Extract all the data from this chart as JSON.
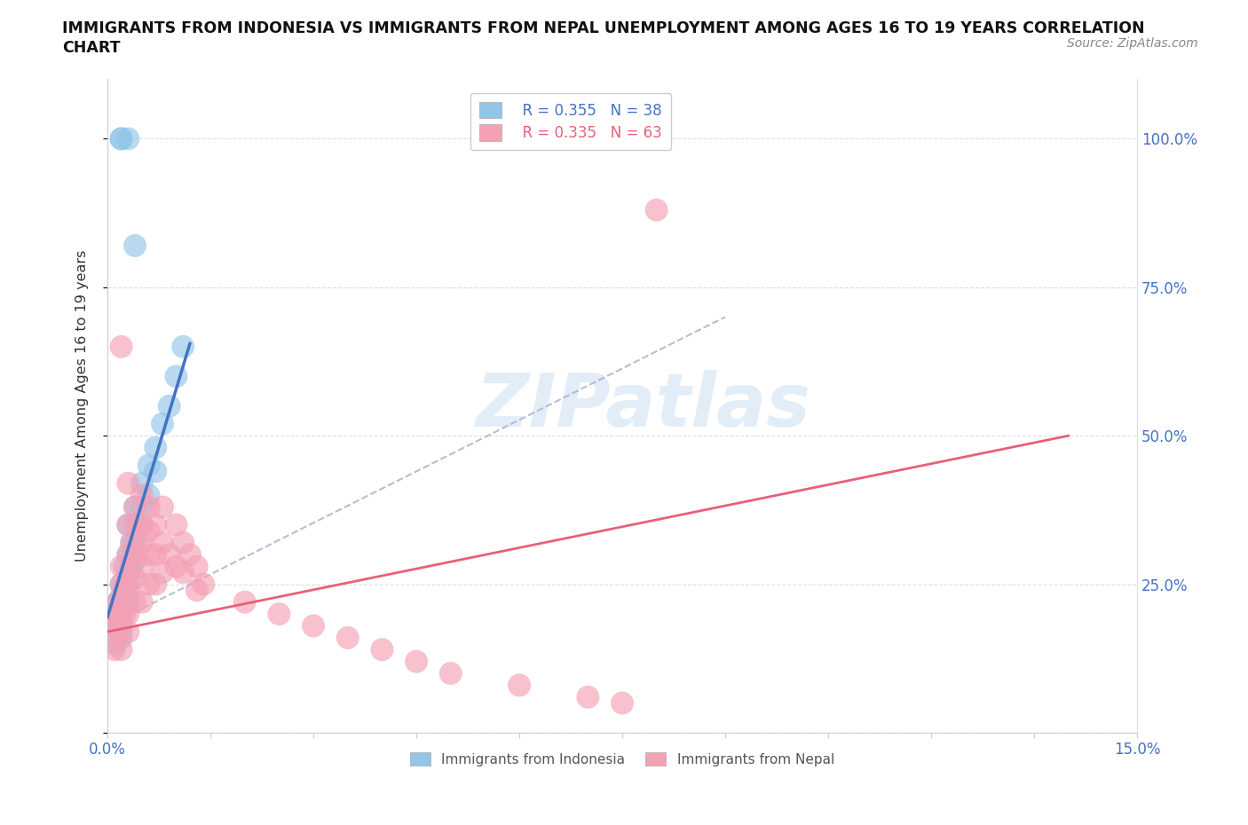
{
  "title_line1": "IMMIGRANTS FROM INDONESIA VS IMMIGRANTS FROM NEPAL UNEMPLOYMENT AMONG AGES 16 TO 19 YEARS CORRELATION",
  "title_line2": "CHART",
  "source": "Source: ZipAtlas.com",
  "ylabel": "Unemployment Among Ages 16 to 19 years",
  "xlim": [
    0.0,
    0.15
  ],
  "ylim": [
    0.0,
    1.1
  ],
  "legend_blue_R": "R = 0.355",
  "legend_blue_N": "N = 38",
  "legend_pink_R": "R = 0.335",
  "legend_pink_N": "N = 63",
  "blue_color": "#92C5E8",
  "pink_color": "#F4A0B5",
  "blue_line_color": "#4472C4",
  "pink_line_color": "#E8607A",
  "watermark": "ZIPatlas",
  "indonesia_x": [
    0.001,
    0.001,
    0.001,
    0.0015,
    0.0015,
    0.002,
    0.002,
    0.002,
    0.002,
    0.002,
    0.0025,
    0.0025,
    0.003,
    0.003,
    0.003,
    0.003,
    0.003,
    0.0035,
    0.0035,
    0.004,
    0.004,
    0.004,
    0.004,
    0.005,
    0.005,
    0.005,
    0.006,
    0.006,
    0.007,
    0.007,
    0.008,
    0.009,
    0.01,
    0.011,
    0.002,
    0.002,
    0.003,
    0.004
  ],
  "indonesia_y": [
    0.2,
    0.18,
    0.15,
    0.22,
    0.19,
    0.25,
    0.23,
    0.2,
    0.18,
    0.16,
    0.28,
    0.24,
    0.35,
    0.3,
    0.27,
    0.25,
    0.22,
    0.32,
    0.28,
    0.38,
    0.35,
    0.32,
    0.29,
    0.42,
    0.38,
    0.35,
    0.45,
    0.4,
    0.48,
    0.44,
    0.52,
    0.55,
    0.6,
    0.65,
    1.0,
    1.0,
    1.0,
    0.82
  ],
  "nepal_x": [
    0.001,
    0.001,
    0.001,
    0.001,
    0.0015,
    0.0015,
    0.002,
    0.002,
    0.002,
    0.002,
    0.002,
    0.002,
    0.0025,
    0.0025,
    0.003,
    0.003,
    0.003,
    0.003,
    0.003,
    0.003,
    0.0035,
    0.004,
    0.004,
    0.004,
    0.004,
    0.004,
    0.005,
    0.005,
    0.005,
    0.005,
    0.005,
    0.006,
    0.006,
    0.006,
    0.006,
    0.007,
    0.007,
    0.007,
    0.008,
    0.008,
    0.008,
    0.009,
    0.01,
    0.01,
    0.011,
    0.011,
    0.012,
    0.013,
    0.013,
    0.014,
    0.02,
    0.025,
    0.03,
    0.035,
    0.04,
    0.045,
    0.05,
    0.06,
    0.07,
    0.075,
    0.08,
    0.002,
    0.003
  ],
  "nepal_y": [
    0.2,
    0.18,
    0.16,
    0.14,
    0.22,
    0.18,
    0.28,
    0.25,
    0.22,
    0.2,
    0.17,
    0.14,
    0.25,
    0.2,
    0.35,
    0.3,
    0.27,
    0.24,
    0.2,
    0.17,
    0.32,
    0.38,
    0.35,
    0.3,
    0.26,
    0.22,
    0.4,
    0.35,
    0.32,
    0.28,
    0.22,
    0.38,
    0.34,
    0.3,
    0.25,
    0.35,
    0.3,
    0.25,
    0.38,
    0.32,
    0.27,
    0.3,
    0.35,
    0.28,
    0.32,
    0.27,
    0.3,
    0.28,
    0.24,
    0.25,
    0.22,
    0.2,
    0.18,
    0.16,
    0.14,
    0.12,
    0.1,
    0.08,
    0.06,
    0.05,
    0.88,
    0.65,
    0.42
  ]
}
